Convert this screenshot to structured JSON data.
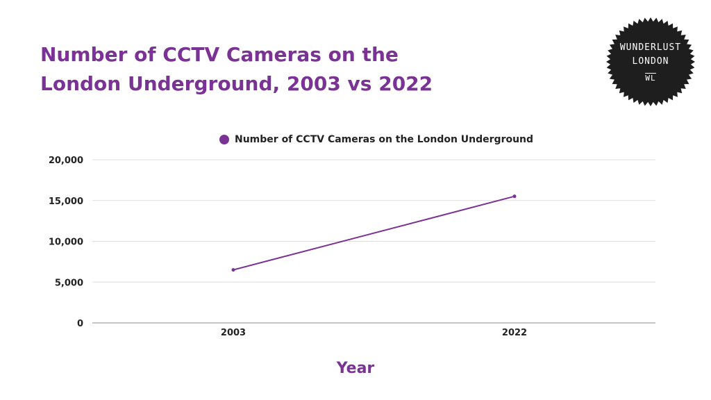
{
  "title_lines": [
    "Number of CCTV Cameras on the",
    "London Underground, 2003 vs 2022"
  ],
  "badge": {
    "line1": "WUNDERLUST",
    "line2": "LONDON",
    "mono": "WL",
    "color": "#1e1e1e"
  },
  "accent_color": "#7a3294",
  "chart_data": {
    "type": "line",
    "x": [
      "2003",
      "2022"
    ],
    "series": [
      {
        "name": "Number of CCTV Cameras on the London Underground",
        "values": [
          6500,
          15516
        ]
      }
    ],
    "ylim": [
      0,
      20000
    ],
    "yticks": [
      0,
      5000,
      10000,
      15000,
      20000
    ],
    "ytick_labels": [
      "0",
      "5,000",
      "10,000",
      "15,000",
      "20,000"
    ],
    "xlabel": "Year",
    "ylabel": "",
    "grid": true,
    "legend": "top-center"
  }
}
